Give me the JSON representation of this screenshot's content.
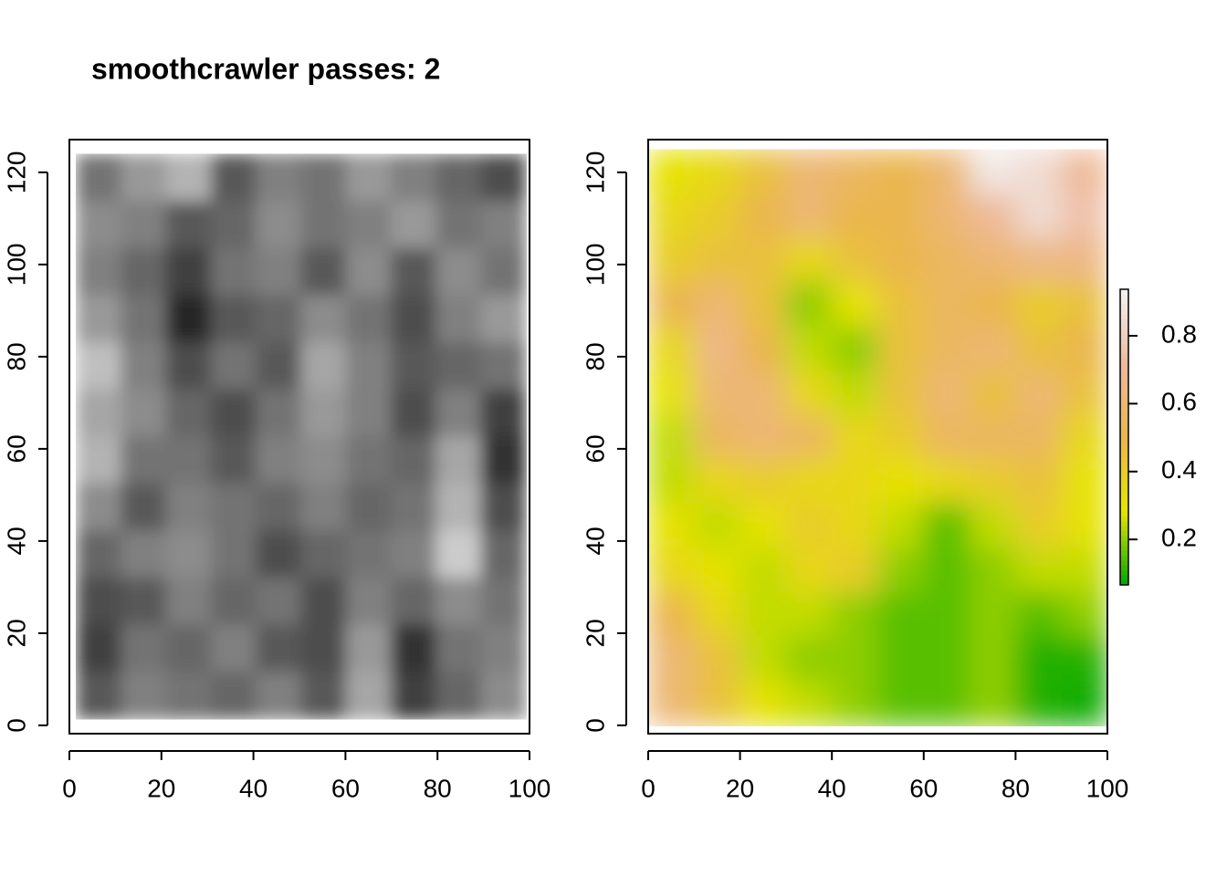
{
  "chart_data": [
    {
      "type": "heatmap",
      "title": "smoothcrawler passes: 2",
      "xlim": [
        0,
        100
      ],
      "ylim": [
        -1.8,
        127.1
      ],
      "xticks": [
        0,
        20,
        40,
        60,
        80,
        100
      ],
      "yticks": [
        0,
        20,
        40,
        60,
        80,
        100,
        120
      ],
      "x_extent": [
        1.4,
        99.2
      ],
      "y_extent": [
        1.4,
        124
      ],
      "zlim": [
        0,
        1
      ],
      "palette": [
        "#000000",
        "#FFFFFF"
      ],
      "z": [
        [
          0.45,
          0.6,
          0.7,
          0.35,
          0.5,
          0.45,
          0.6,
          0.5,
          0.4,
          0.3
        ],
        [
          0.55,
          0.5,
          0.35,
          0.4,
          0.55,
          0.45,
          0.5,
          0.6,
          0.45,
          0.5
        ],
        [
          0.5,
          0.4,
          0.25,
          0.45,
          0.5,
          0.35,
          0.55,
          0.35,
          0.55,
          0.45
        ],
        [
          0.6,
          0.45,
          0.15,
          0.35,
          0.4,
          0.55,
          0.45,
          0.3,
          0.5,
          0.6
        ],
        [
          0.75,
          0.5,
          0.3,
          0.45,
          0.35,
          0.65,
          0.5,
          0.35,
          0.4,
          0.45
        ],
        [
          0.65,
          0.55,
          0.4,
          0.3,
          0.45,
          0.6,
          0.5,
          0.3,
          0.5,
          0.25
        ],
        [
          0.7,
          0.45,
          0.45,
          0.35,
          0.5,
          0.55,
          0.45,
          0.4,
          0.65,
          0.2
        ],
        [
          0.55,
          0.35,
          0.5,
          0.45,
          0.4,
          0.5,
          0.4,
          0.45,
          0.7,
          0.3
        ],
        [
          0.4,
          0.5,
          0.55,
          0.45,
          0.3,
          0.4,
          0.45,
          0.5,
          0.8,
          0.4
        ],
        [
          0.3,
          0.35,
          0.5,
          0.4,
          0.45,
          0.3,
          0.5,
          0.4,
          0.55,
          0.45
        ],
        [
          0.25,
          0.45,
          0.4,
          0.5,
          0.35,
          0.3,
          0.6,
          0.2,
          0.45,
          0.5
        ],
        [
          0.35,
          0.5,
          0.45,
          0.4,
          0.5,
          0.35,
          0.65,
          0.25,
          0.4,
          0.55
        ]
      ]
    },
    {
      "type": "heatmap",
      "xlim": [
        0,
        100
      ],
      "ylim": [
        -1.8,
        127.1
      ],
      "xticks": [
        0,
        20,
        40,
        60,
        80,
        100
      ],
      "yticks": [
        0,
        20,
        40,
        60,
        80,
        100,
        120
      ],
      "x_extent": [
        0,
        100
      ],
      "y_extent": [
        0,
        125
      ],
      "zlim": [
        0.066,
        0.937
      ],
      "zticks": [
        0.2,
        0.4,
        0.6,
        0.8
      ],
      "colorbar": true,
      "palette": [
        "#00A600",
        "#E6E600",
        "#EAB64E",
        "#EEB99F",
        "#F2F2F2"
      ],
      "z": [
        [
          0.3,
          0.35,
          0.45,
          0.6,
          0.55,
          0.5,
          0.6,
          0.9,
          0.85,
          0.7
        ],
        [
          0.35,
          0.4,
          0.5,
          0.6,
          0.5,
          0.5,
          0.6,
          0.7,
          0.85,
          0.75
        ],
        [
          0.4,
          0.45,
          0.45,
          0.35,
          0.45,
          0.5,
          0.55,
          0.6,
          0.65,
          0.65
        ],
        [
          0.5,
          0.6,
          0.45,
          0.2,
          0.3,
          0.45,
          0.55,
          0.5,
          0.4,
          0.45
        ],
        [
          0.35,
          0.65,
          0.5,
          0.25,
          0.2,
          0.45,
          0.55,
          0.6,
          0.45,
          0.5
        ],
        [
          0.3,
          0.6,
          0.6,
          0.35,
          0.25,
          0.45,
          0.6,
          0.45,
          0.6,
          0.45
        ],
        [
          0.25,
          0.55,
          0.6,
          0.55,
          0.35,
          0.4,
          0.55,
          0.55,
          0.55,
          0.35
        ],
        [
          0.25,
          0.35,
          0.4,
          0.35,
          0.35,
          0.3,
          0.35,
          0.4,
          0.45,
          0.3
        ],
        [
          0.3,
          0.25,
          0.3,
          0.4,
          0.35,
          0.25,
          0.15,
          0.25,
          0.4,
          0.3
        ],
        [
          0.35,
          0.3,
          0.25,
          0.35,
          0.4,
          0.2,
          0.15,
          0.2,
          0.25,
          0.25
        ],
        [
          0.5,
          0.35,
          0.25,
          0.25,
          0.2,
          0.15,
          0.15,
          0.2,
          0.15,
          0.2
        ],
        [
          0.6,
          0.45,
          0.25,
          0.2,
          0.2,
          0.15,
          0.15,
          0.2,
          0.1,
          0.1
        ],
        [
          0.6,
          0.45,
          0.3,
          0.25,
          0.2,
          0.15,
          0.15,
          0.2,
          0.1,
          0.08
        ]
      ]
    }
  ]
}
